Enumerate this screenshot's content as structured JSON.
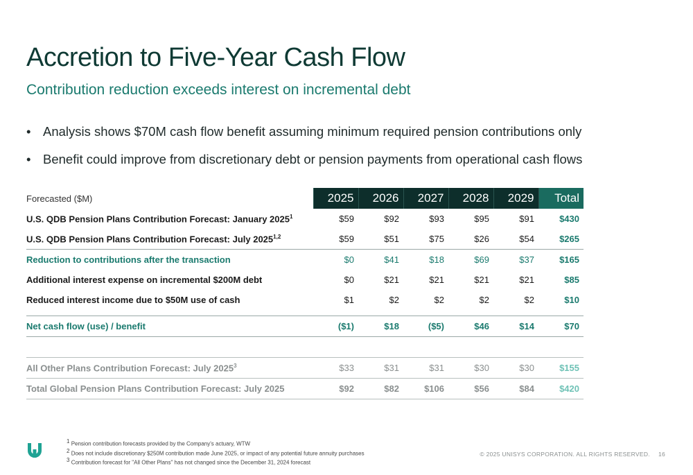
{
  "header": {
    "title": "Accretion to Five-Year Cash Flow",
    "subtitle": "Contribution reduction exceeds interest on incremental debt"
  },
  "bullets": [
    "Analysis shows $70M cash flow benefit assuming minimum required pension contributions only",
    "Benefit could improve from discretionary debt or pension payments from operational cash flows"
  ],
  "table": {
    "caption": "Forecasted ($M)",
    "columns": [
      "2025",
      "2026",
      "2027",
      "2028",
      "2029",
      "Total"
    ],
    "rows": [
      {
        "label": "U.S. QDB Pension Plans Contribution Forecast: January 2025",
        "sup": "1",
        "values": [
          "$59",
          "$92",
          "$93",
          "$95",
          "$91",
          "$430"
        ]
      },
      {
        "label": "U.S. QDB Pension Plans Contribution Forecast: July 2025",
        "sup": "1,2",
        "values": [
          "$59",
          "$51",
          "$75",
          "$26",
          "$54",
          "$265"
        ]
      },
      {
        "label": "Reduction to contributions after the transaction",
        "sup": "",
        "values": [
          "$0",
          "$41",
          "$18",
          "$69",
          "$37",
          "$165"
        ]
      },
      {
        "label": "Additional interest expense on incremental $200M debt",
        "sup": "",
        "values": [
          "$0",
          "$21",
          "$21",
          "$21",
          "$21",
          "$85"
        ]
      },
      {
        "label": "Reduced interest income due to $50M use of cash",
        "sup": "",
        "values": [
          "$1",
          "$2",
          "$2",
          "$2",
          "$2",
          "$10"
        ]
      }
    ],
    "net_row": {
      "label": "Net cash flow (use) / benefit",
      "values": [
        "($1)",
        "$18",
        "($5)",
        "$46",
        "$14",
        "$70"
      ]
    },
    "other_rows": [
      {
        "label": "All Other Plans Contribution Forecast: July 2025",
        "sup": "3",
        "values": [
          "$33",
          "$31",
          "$31",
          "$30",
          "$30",
          "$155"
        ]
      },
      {
        "label": "Total Global Pension Plans Contribution Forecast: July 2025",
        "sup": "",
        "values": [
          "$92",
          "$82",
          "$106",
          "$56",
          "$84",
          "$420"
        ]
      }
    ]
  },
  "footnotes": [
    {
      "num": "1",
      "text": "Pension contribution forecasts provided by the Company's actuary, WTW"
    },
    {
      "num": "2",
      "text": "Does not include discretionary $250M contribution made June 2025, or impact of any potential future annuity purchases"
    },
    {
      "num": "3",
      "text": "Contribution forecast for \"All Other Plans\" has not changed since the December 31, 2024 forecast"
    }
  ],
  "footer": {
    "copyright": "© 2025 UNISYS CORPORATION. ALL RIGHTS RESERVED.",
    "page_number": "16"
  },
  "colors": {
    "dark_teal": "#0d2e2b",
    "accent_teal": "#1a7a6e",
    "light_teal": "#6fc2b6"
  },
  "icons": {
    "logo": "unisys-u-logo"
  }
}
